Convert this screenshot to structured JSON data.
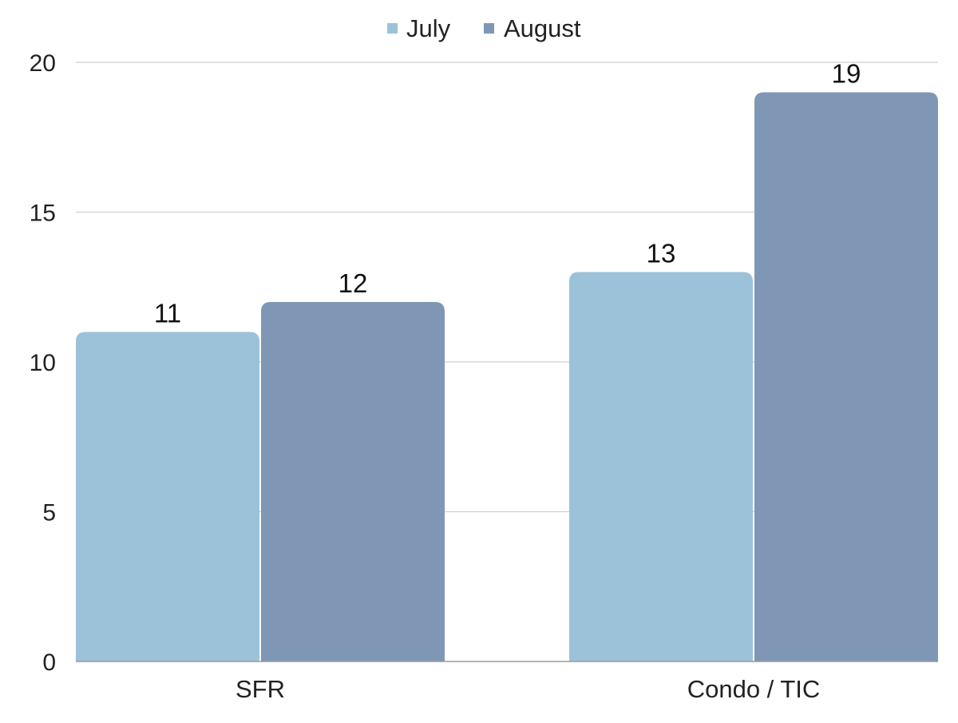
{
  "chart_data": {
    "type": "bar",
    "categories": [
      "SFR",
      "Condo / TIC"
    ],
    "series": [
      {
        "name": "July",
        "values": [
          11,
          13
        ],
        "color": "#9bc2d8"
      },
      {
        "name": "August",
        "values": [
          12,
          19
        ],
        "color": "#7f97b4"
      }
    ],
    "yticks": [
      0,
      5,
      10,
      15,
      20
    ],
    "ylim": [
      0,
      20
    ],
    "grid": true,
    "legend": "top-center",
    "data_labels": true
  }
}
